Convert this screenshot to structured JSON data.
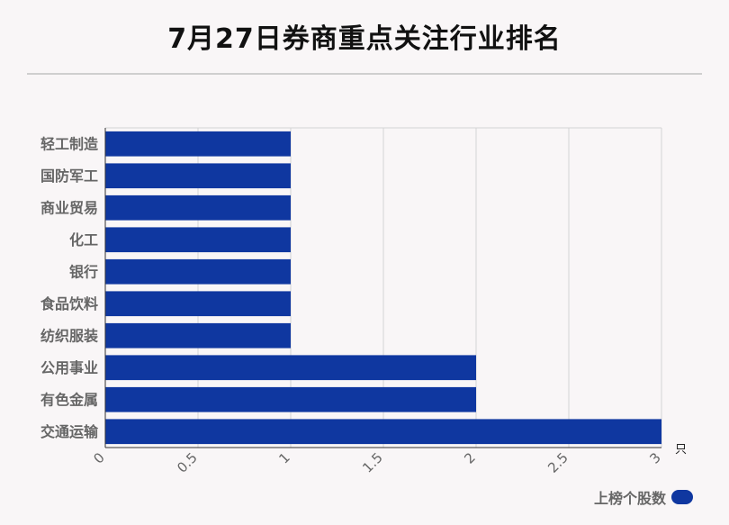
{
  "title": "7月27日券商重点关注行业排名",
  "chart_data": {
    "type": "bar",
    "orientation": "horizontal",
    "categories": [
      "轻工制造",
      "国防军工",
      "商业贸易",
      "化工",
      "银行",
      "食品饮料",
      "纺织服装",
      "公用事业",
      "有色金属",
      "交通运输"
    ],
    "series": [
      {
        "name": "上榜个股数",
        "values": [
          1,
          1,
          1,
          1,
          1,
          1,
          1,
          2,
          2,
          3
        ]
      }
    ],
    "xticks": [
      "0",
      "0.5",
      "1",
      "1.5",
      "2",
      "2.5",
      "3"
    ],
    "xlim": [
      0,
      3
    ],
    "unit": "只",
    "grid": true,
    "legend_position": "bottom-right",
    "bar_color": "#0f37a0"
  }
}
